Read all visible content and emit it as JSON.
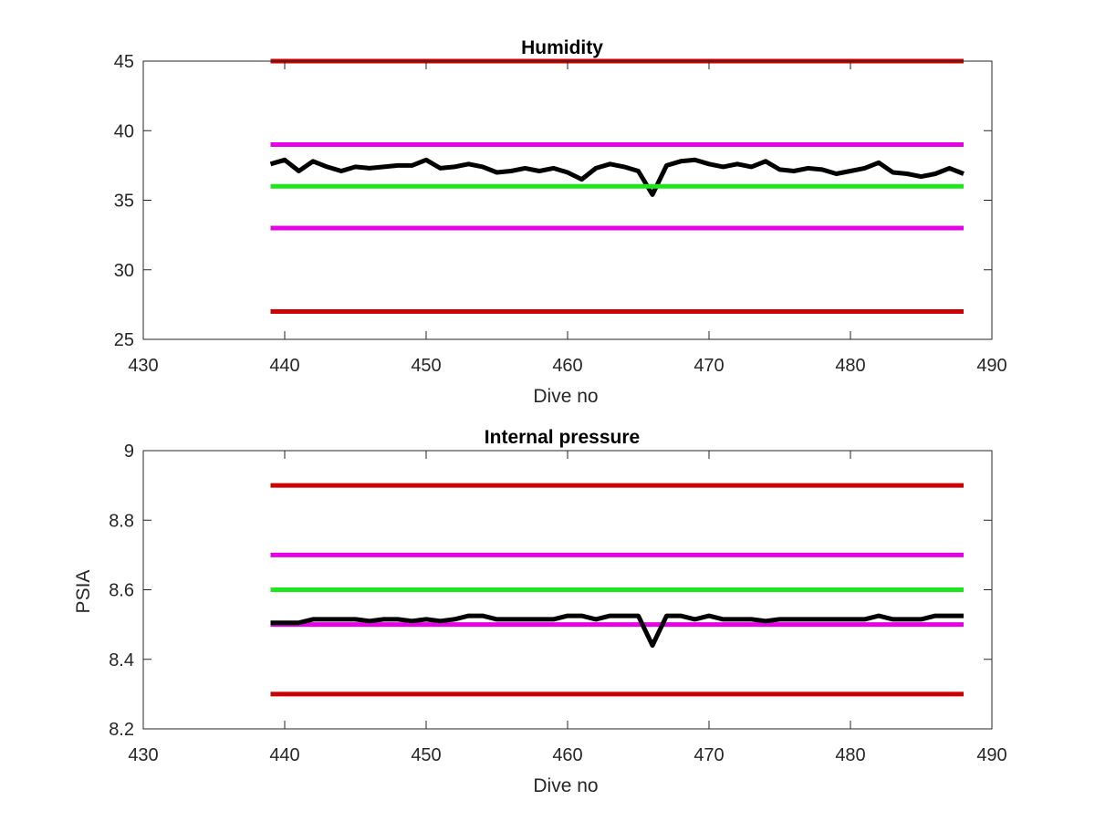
{
  "chart_data": [
    {
      "type": "line",
      "title": "Humidity",
      "xlabel": "Dive no",
      "ylabel": "",
      "xlim": [
        430,
        490
      ],
      "ylim": [
        25,
        45
      ],
      "xticks": [
        "430",
        "440",
        "450",
        "460",
        "470",
        "480",
        "490"
      ],
      "yticks": [
        "25",
        "30",
        "35",
        "40",
        "45"
      ],
      "grid": false,
      "series": [
        {
          "color": "#000000",
          "x": [
            439,
            440,
            441,
            442,
            443,
            444,
            445,
            446,
            447,
            448,
            449,
            450,
            451,
            452,
            453,
            454,
            455,
            456,
            457,
            458,
            459,
            460,
            461,
            462,
            463,
            464,
            465,
            466,
            467,
            468,
            469,
            470,
            471,
            472,
            473,
            474,
            475,
            476,
            477,
            478,
            479,
            480,
            481,
            482,
            483,
            484,
            485,
            486,
            487,
            488
          ],
          "values": [
            37.6,
            37.9,
            37.1,
            37.8,
            37.4,
            37.1,
            37.4,
            37.3,
            37.4,
            37.5,
            37.5,
            37.9,
            37.3,
            37.4,
            37.6,
            37.4,
            37.0,
            37.1,
            37.3,
            37.1,
            37.3,
            37.0,
            36.5,
            37.3,
            37.6,
            37.4,
            37.1,
            35.4,
            37.5,
            37.8,
            37.9,
            37.6,
            37.4,
            37.6,
            37.4,
            37.8,
            37.2,
            37.1,
            37.3,
            37.2,
            36.9,
            37.1,
            37.3,
            37.7,
            37.0,
            36.9,
            36.7,
            36.9,
            37.3,
            36.9
          ]
        },
        {
          "color": "#cc0000",
          "x": [
            439,
            488
          ],
          "values": [
            45,
            45
          ]
        },
        {
          "color": "#e600e6",
          "x": [
            439,
            488
          ],
          "values": [
            39,
            39
          ]
        },
        {
          "color": "#1ee61e",
          "x": [
            439,
            488
          ],
          "values": [
            36,
            36
          ]
        },
        {
          "color": "#e600e6",
          "x": [
            439,
            488
          ],
          "values": [
            33,
            33
          ]
        },
        {
          "color": "#cc0000",
          "x": [
            439,
            488
          ],
          "values": [
            27,
            27
          ]
        }
      ]
    },
    {
      "type": "line",
      "title": "Internal pressure",
      "xlabel": "Dive no",
      "ylabel": "PSIA",
      "xlim": [
        430,
        490
      ],
      "ylim": [
        8.2,
        9.0
      ],
      "xticks": [
        "430",
        "440",
        "450",
        "460",
        "470",
        "480",
        "490"
      ],
      "yticks": [
        "8.2",
        "8.4",
        "8.6",
        "8.8",
        "9"
      ],
      "grid": false,
      "series": [
        {
          "color": "#cc0000",
          "x": [
            439,
            488
          ],
          "values": [
            8.9,
            8.9
          ]
        },
        {
          "color": "#e600e6",
          "x": [
            439,
            488
          ],
          "values": [
            8.7,
            8.7
          ]
        },
        {
          "color": "#1ee61e",
          "x": [
            439,
            488
          ],
          "values": [
            8.6,
            8.6
          ]
        },
        {
          "color": "#e600e6",
          "x": [
            439,
            488
          ],
          "values": [
            8.5,
            8.5
          ]
        },
        {
          "color": "#cc0000",
          "x": [
            439,
            488
          ],
          "values": [
            8.3,
            8.3
          ]
        },
        {
          "color": "#000000",
          "x": [
            439,
            440,
            441,
            442,
            443,
            444,
            445,
            446,
            447,
            448,
            449,
            450,
            451,
            452,
            453,
            454,
            455,
            456,
            457,
            458,
            459,
            460,
            461,
            462,
            463,
            464,
            465,
            466,
            467,
            468,
            469,
            470,
            471,
            472,
            473,
            474,
            475,
            476,
            477,
            478,
            479,
            480,
            481,
            482,
            483,
            484,
            485,
            486,
            487,
            488
          ],
          "values": [
            8.505,
            8.505,
            8.505,
            8.515,
            8.515,
            8.515,
            8.515,
            8.51,
            8.515,
            8.515,
            8.51,
            8.515,
            8.51,
            8.515,
            8.525,
            8.525,
            8.515,
            8.515,
            8.515,
            8.515,
            8.515,
            8.525,
            8.525,
            8.515,
            8.525,
            8.525,
            8.525,
            8.44,
            8.525,
            8.525,
            8.515,
            8.525,
            8.515,
            8.515,
            8.515,
            8.51,
            8.515,
            8.515,
            8.515,
            8.515,
            8.515,
            8.515,
            8.515,
            8.525,
            8.515,
            8.515,
            8.515,
            8.525,
            8.525,
            8.525
          ]
        }
      ]
    }
  ]
}
